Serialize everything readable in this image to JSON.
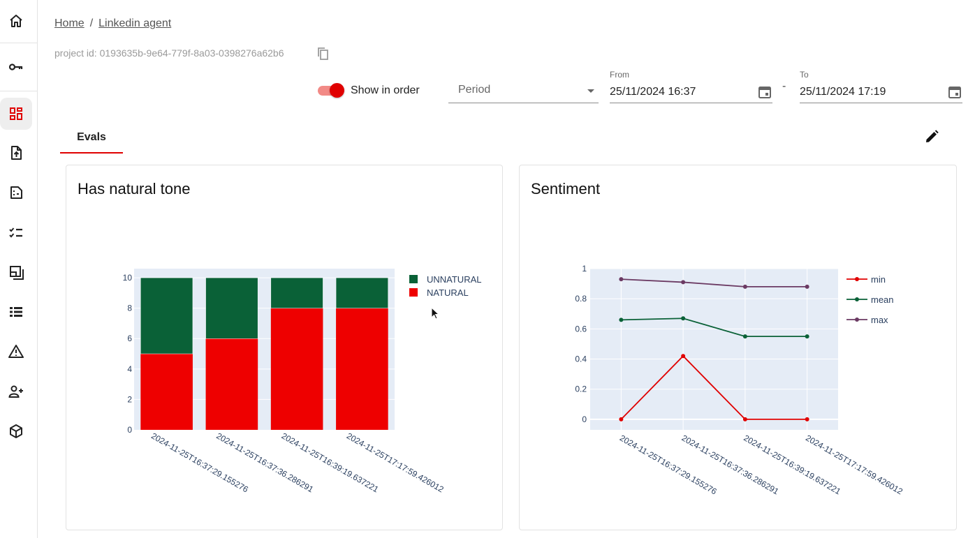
{
  "sidebar": {
    "items": [
      {
        "icon": "home-icon"
      },
      {
        "icon": "key-icon"
      },
      {
        "icon": "dashboard-icon",
        "active": true
      },
      {
        "icon": "upload-file-icon"
      },
      {
        "icon": "document-icon"
      },
      {
        "icon": "checklist-icon"
      },
      {
        "icon": "layers-icon"
      },
      {
        "icon": "list-icon"
      },
      {
        "icon": "warning-icon"
      },
      {
        "icon": "add-user-icon"
      },
      {
        "icon": "cube-icon"
      }
    ]
  },
  "breadcrumb": {
    "home": "Home",
    "separator": "/",
    "current": "Linkedin agent"
  },
  "project_id": "project id: 0193635b-9e64-779f-8a03-0398276a62b6",
  "controls": {
    "toggle_label": "Show in order",
    "toggle_on": true,
    "period_value": "Period",
    "from_label": "From",
    "from_value": "25/11/2024 16:37",
    "range_dash": "-",
    "to_label": "To",
    "to_value": "25/11/2024 17:19"
  },
  "tabs": [
    {
      "label": "Evals",
      "active": true
    }
  ],
  "colors": {
    "accent": "#e00000",
    "natural": "#ee0000",
    "unnatural": "#0a6137",
    "min": "#e00000",
    "mean": "#0a6137",
    "max": "#6b3a63",
    "plot_bg": "#e5ecf6"
  },
  "chart_data": [
    {
      "type": "bar",
      "stacked": true,
      "title": "Has natural tone",
      "categories": [
        "2024-11-25T16:37:29.155276",
        "2024-11-25T16:37:36.286291",
        "2024-11-25T16:39:19.637221",
        "2024-11-25T17:17:59.426012"
      ],
      "series": [
        {
          "name": "NATURAL",
          "values": [
            5,
            6,
            8,
            8
          ]
        },
        {
          "name": "UNNATURAL",
          "values": [
            5,
            4,
            2,
            2
          ]
        }
      ],
      "yticks": [
        "0",
        "2",
        "4",
        "6",
        "8",
        "10"
      ],
      "ylim": [
        0,
        10.6
      ],
      "legend": "top-right"
    },
    {
      "type": "line",
      "title": "Sentiment",
      "categories": [
        "2024-11-25T16:37:29.155276",
        "2024-11-25T16:37:36.286291",
        "2024-11-25T16:39:19.637221",
        "2024-11-25T17:17:59.426012"
      ],
      "series": [
        {
          "name": "min",
          "values": [
            0,
            0.42,
            0,
            0
          ]
        },
        {
          "name": "mean",
          "values": [
            0.66,
            0.67,
            0.55,
            0.55
          ]
        },
        {
          "name": "max",
          "values": [
            0.93,
            0.91,
            0.88,
            0.88
          ]
        }
      ],
      "yticks": [
        "0",
        "0.2",
        "0.4",
        "0.6",
        "0.8",
        "1"
      ],
      "ylim": [
        -0.07,
        1.0
      ],
      "legend": "top-right"
    }
  ]
}
